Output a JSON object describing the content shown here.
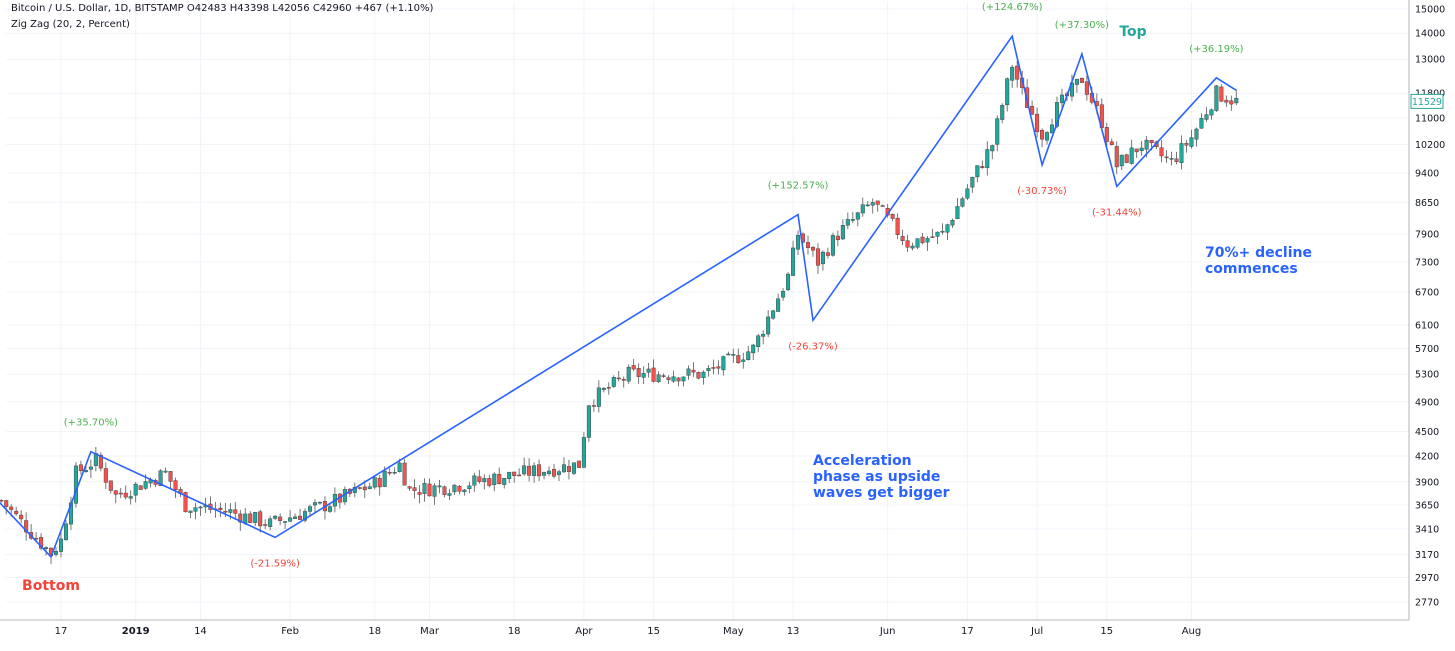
{
  "header": {
    "line1": "Bitcoin / U.S. Dollar, 1D, BITSTAMP  O42483  H43398  L42056  C42960  +467 (+1.10%)",
    "line2": "Zig Zag (20, 2, Percent)"
  },
  "colors": {
    "up": "#26a69a",
    "down": "#ef5350",
    "zigzag": "#2962ff",
    "pct_up": "#4caf50",
    "pct_down": "#f44336",
    "grid": "#f0f3fa",
    "axis": "#131722"
  },
  "chart_data": {
    "type": "candlestick",
    "y_scale": "log",
    "ylim": [
      2600,
      15300
    ],
    "y_ticks": [
      15000,
      14000,
      13000,
      11800,
      11000,
      10200,
      9400,
      8650,
      7900,
      7300,
      6700,
      6100,
      5700,
      5300,
      4900,
      4500,
      4200,
      3900,
      3650,
      3410,
      3170,
      2970,
      2770
    ],
    "x_ticks": [
      {
        "date": "2018-12-17",
        "label": "17"
      },
      {
        "date": "2019-01-01",
        "label": "2019"
      },
      {
        "date": "2019-01-14",
        "label": "14"
      },
      {
        "date": "2019-02-01",
        "label": "Feb"
      },
      {
        "date": "2019-02-18",
        "label": "18"
      },
      {
        "date": "2019-03-01",
        "label": "Mar"
      },
      {
        "date": "2019-03-18",
        "label": "18"
      },
      {
        "date": "2019-04-01",
        "label": "Apr"
      },
      {
        "date": "2019-04-15",
        "label": "15"
      },
      {
        "date": "2019-05-01",
        "label": "May"
      },
      {
        "date": "2019-05-13",
        "label": "13"
      },
      {
        "date": "2019-06-01",
        "label": "Jun"
      },
      {
        "date": "2019-06-17",
        "label": "17"
      },
      {
        "date": "2019-07-01",
        "label": "Jul"
      },
      {
        "date": "2019-07-15",
        "label": "15"
      },
      {
        "date": "2019-08-01",
        "label": "Aug"
      }
    ],
    "last_price": {
      "value": 11529,
      "label": "11529"
    },
    "anchor_points": [
      {
        "date": "2018-12-05",
        "price": 3700
      },
      {
        "date": "2018-12-10",
        "price": 3430
      },
      {
        "date": "2018-12-15",
        "price": 3180
      },
      {
        "date": "2018-12-17",
        "price": 3300
      },
      {
        "date": "2018-12-20",
        "price": 4000
      },
      {
        "date": "2018-12-24",
        "price": 4150
      },
      {
        "date": "2018-12-28",
        "price": 3750
      },
      {
        "date": "2019-01-07",
        "price": 4000
      },
      {
        "date": "2019-01-11",
        "price": 3650
      },
      {
        "date": "2019-01-20",
        "price": 3580
      },
      {
        "date": "2019-01-28",
        "price": 3460
      },
      {
        "date": "2019-02-08",
        "price": 3650
      },
      {
        "date": "2019-02-18",
        "price": 3880
      },
      {
        "date": "2019-02-23",
        "price": 4100
      },
      {
        "date": "2019-02-25",
        "price": 3810
      },
      {
        "date": "2019-03-05",
        "price": 3850
      },
      {
        "date": "2019-03-20",
        "price": 4000
      },
      {
        "date": "2019-03-31",
        "price": 4100
      },
      {
        "date": "2019-04-02",
        "price": 4900
      },
      {
        "date": "2019-04-10",
        "price": 5300
      },
      {
        "date": "2019-04-25",
        "price": 5300
      },
      {
        "date": "2019-05-05",
        "price": 5700
      },
      {
        "date": "2019-05-12",
        "price": 7000
      },
      {
        "date": "2019-05-14",
        "price": 7900
      },
      {
        "date": "2019-05-18",
        "price": 7300
      },
      {
        "date": "2019-05-22",
        "price": 7900
      },
      {
        "date": "2019-05-29",
        "price": 8650
      },
      {
        "date": "2019-06-05",
        "price": 7700
      },
      {
        "date": "2019-06-12",
        "price": 7900
      },
      {
        "date": "2019-06-17",
        "price": 9000
      },
      {
        "date": "2019-06-22",
        "price": 10200
      },
      {
        "date": "2019-06-26",
        "price": 12800
      },
      {
        "date": "2019-06-28",
        "price": 11800
      },
      {
        "date": "2019-07-02",
        "price": 10500
      },
      {
        "date": "2019-07-05",
        "price": 11300
      },
      {
        "date": "2019-07-10",
        "price": 12300
      },
      {
        "date": "2019-07-14",
        "price": 10900
      },
      {
        "date": "2019-07-17",
        "price": 9600
      },
      {
        "date": "2019-07-22",
        "price": 10200
      },
      {
        "date": "2019-07-28",
        "price": 9700
      },
      {
        "date": "2019-08-01",
        "price": 10400
      },
      {
        "date": "2019-08-06",
        "price": 11800
      },
      {
        "date": "2019-08-10",
        "price": 11529
      }
    ],
    "zigzag": [
      {
        "date": "2018-12-03",
        "price": 3770
      },
      {
        "date": "2018-12-15",
        "price": 3150
      },
      {
        "date": "2018-12-23",
        "price": 4250
      },
      {
        "date": "2019-01-29",
        "price": 3330
      },
      {
        "date": "2019-05-14",
        "price": 8350,
        "label": "(+152.57%)",
        "dir": "up"
      },
      {
        "date": "2019-05-17",
        "price": 6180,
        "label": "(-26.37%)",
        "dir": "down"
      },
      {
        "date": "2019-06-26",
        "price": 13880,
        "label": "(+124.67%)",
        "dir": "up"
      },
      {
        "date": "2019-07-02",
        "price": 9620,
        "label": "(-30.73%)",
        "dir": "down"
      },
      {
        "date": "2019-07-10",
        "price": 13200,
        "label": "(+37.30%)",
        "dir": "up"
      },
      {
        "date": "2019-07-17",
        "price": 9050,
        "label": "(-31.44%)",
        "dir": "down"
      },
      {
        "date": "2019-08-06",
        "price": 12330,
        "label": "(+36.19%)",
        "dir": "up"
      },
      {
        "date": "2019-08-10",
        "price": 11900
      }
    ],
    "extra_labels": [
      {
        "date": "2018-12-23",
        "price": 4250,
        "label": "(+35.70%)",
        "dir": "up"
      },
      {
        "date": "2019-01-29",
        "price": 3330,
        "label": "(-21.59%)",
        "dir": "down"
      }
    ],
    "annotations": {
      "top": "Top",
      "bottom": "Bottom",
      "acceleration": [
        "Acceleration",
        "phase as upside",
        "waves get bigger"
      ],
      "decline": [
        "70%+ decline",
        "commences"
      ]
    }
  }
}
